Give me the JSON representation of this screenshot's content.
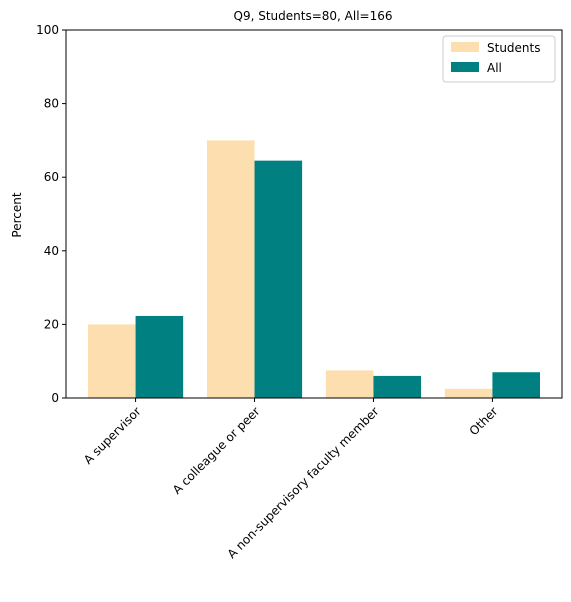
{
  "chart_data": {
    "type": "bar",
    "title": "Q9, Students=80, All=166",
    "xlabel": "",
    "ylabel": "Percent",
    "ylim": [
      0,
      100
    ],
    "yticks": [
      0,
      20,
      40,
      60,
      80,
      100
    ],
    "categories": [
      "A supervisor",
      "A colleague or peer",
      "A non-supervisory faculty member",
      "Other"
    ],
    "series": [
      {
        "name": "Students",
        "color": "#fddeaf",
        "values": [
          20.0,
          70.0,
          7.5,
          2.5
        ]
      },
      {
        "name": "All",
        "color": "#008080",
        "values": [
          22.3,
          64.5,
          6.0,
          7.0
        ]
      }
    ],
    "legend": {
      "position": "top-right"
    },
    "grid": false
  }
}
